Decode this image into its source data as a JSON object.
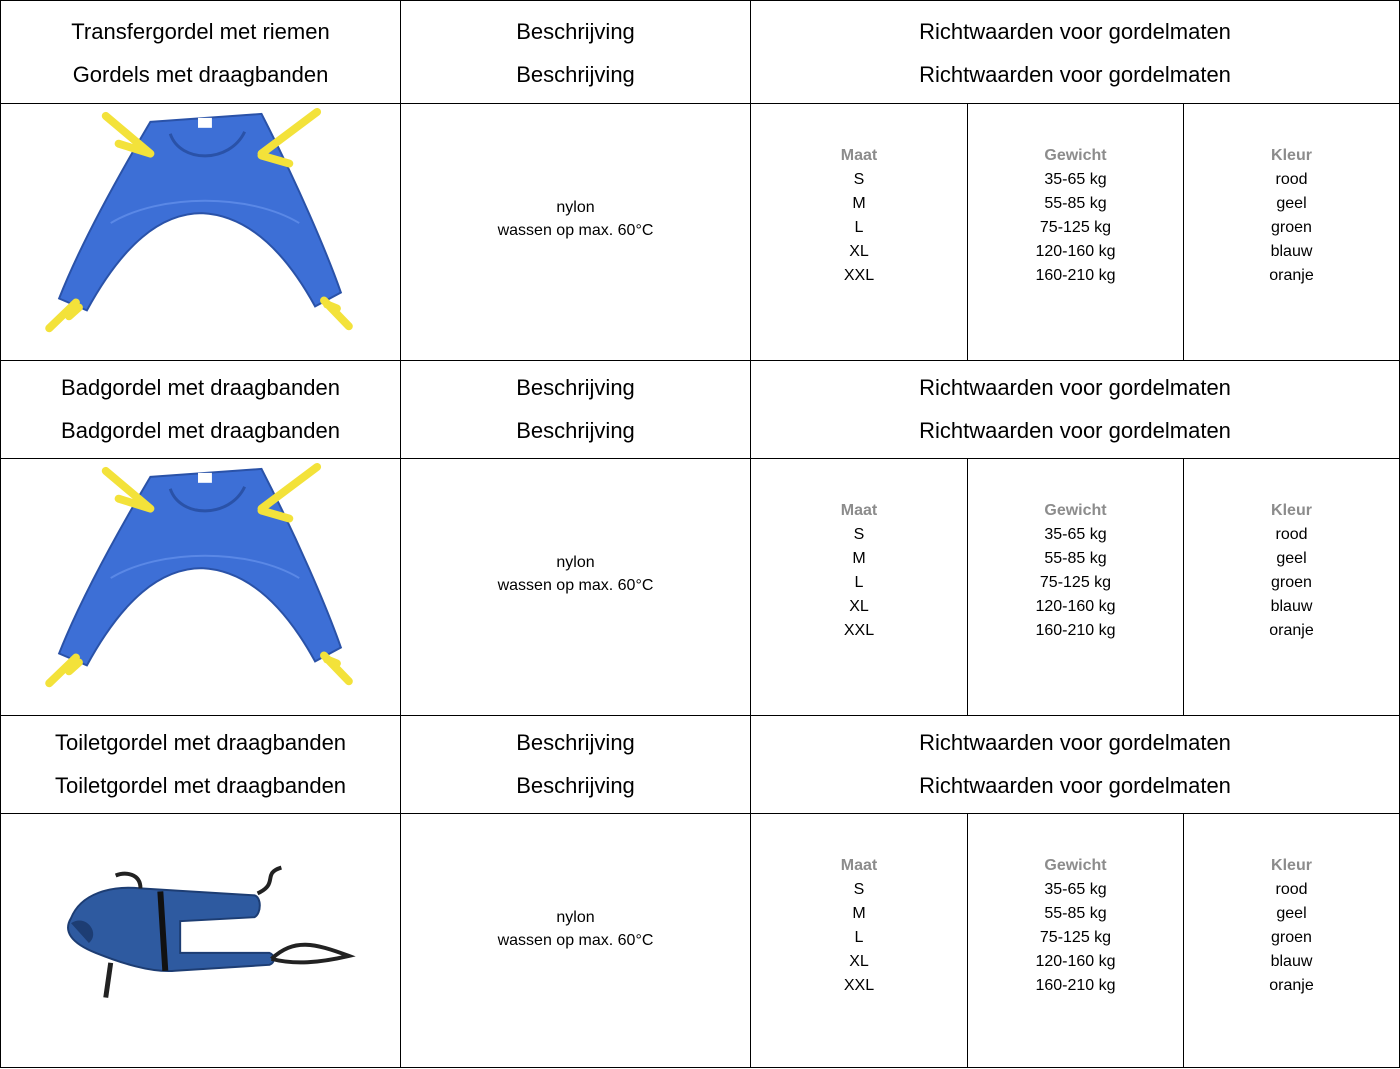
{
  "sections": [
    {
      "header": {
        "product": [
          "Transfergordel met riemen",
          "Gordels met draagbanden"
        ],
        "description": [
          "Beschrijving",
          "Beschrijving"
        ],
        "sizes": [
          "Richtwaarden voor gordelmaten",
          "Richtwaarden voor gordelmaten"
        ]
      },
      "description": [
        "nylon",
        "wassen op max. 60°C"
      ],
      "sizes": [
        {
          "header": "Maat",
          "values": [
            "S",
            "M",
            "L",
            "XL",
            "XXL"
          ]
        },
        {
          "header": "Gewicht",
          "values": [
            "35-65 kg",
            "55-85 kg",
            "75-125 kg",
            "120-160 kg",
            "160-210 kg"
          ]
        },
        {
          "header": "Kleur",
          "values": [
            "rood",
            "geel",
            "groen",
            "blauw",
            "oranje"
          ]
        }
      ]
    },
    {
      "header": {
        "product": [
          "Badgordel met draagbanden",
          "Badgordel met draagbanden"
        ],
        "description": [
          "Beschrijving",
          "Beschrijving"
        ],
        "sizes": [
          "Richtwaarden voor gordelmaten",
          "Richtwaarden voor gordelmaten"
        ]
      },
      "description": [
        "nylon",
        "wassen op max. 60°C"
      ],
      "sizes": [
        {
          "header": "Maat",
          "values": [
            "S",
            "M",
            "L",
            "XL",
            "XXL"
          ]
        },
        {
          "header": "Gewicht",
          "values": [
            "35-65 kg",
            "55-85 kg",
            "75-125 kg",
            "120-160 kg",
            "160-210 kg"
          ]
        },
        {
          "header": "Kleur",
          "values": [
            "rood",
            "geel",
            "groen",
            "blauw",
            "oranje"
          ]
        }
      ]
    },
    {
      "header": {
        "product": [
          "Toiletgordel met draagbanden",
          "Toiletgordel met draagbanden"
        ],
        "description": [
          "Beschrijving",
          "Beschrijving"
        ],
        "sizes": [
          "Richtwaarden voor gordelmaten",
          "Richtwaarden voor gordelmaten"
        ]
      },
      "description": [
        "nylon",
        "wassen op max. 60°C"
      ],
      "sizes": [
        {
          "header": "Maat",
          "values": [
            "S",
            "M",
            "L",
            "XL",
            "XXL"
          ]
        },
        {
          "header": "Gewicht",
          "values": [
            "35-65 kg",
            "55-85 kg",
            "75-125 kg",
            "120-160 kg",
            "160-210 kg"
          ]
        },
        {
          "header": "Kleur",
          "values": [
            "rood",
            "geel",
            "groen",
            "blauw",
            "oranje"
          ]
        }
      ]
    }
  ]
}
